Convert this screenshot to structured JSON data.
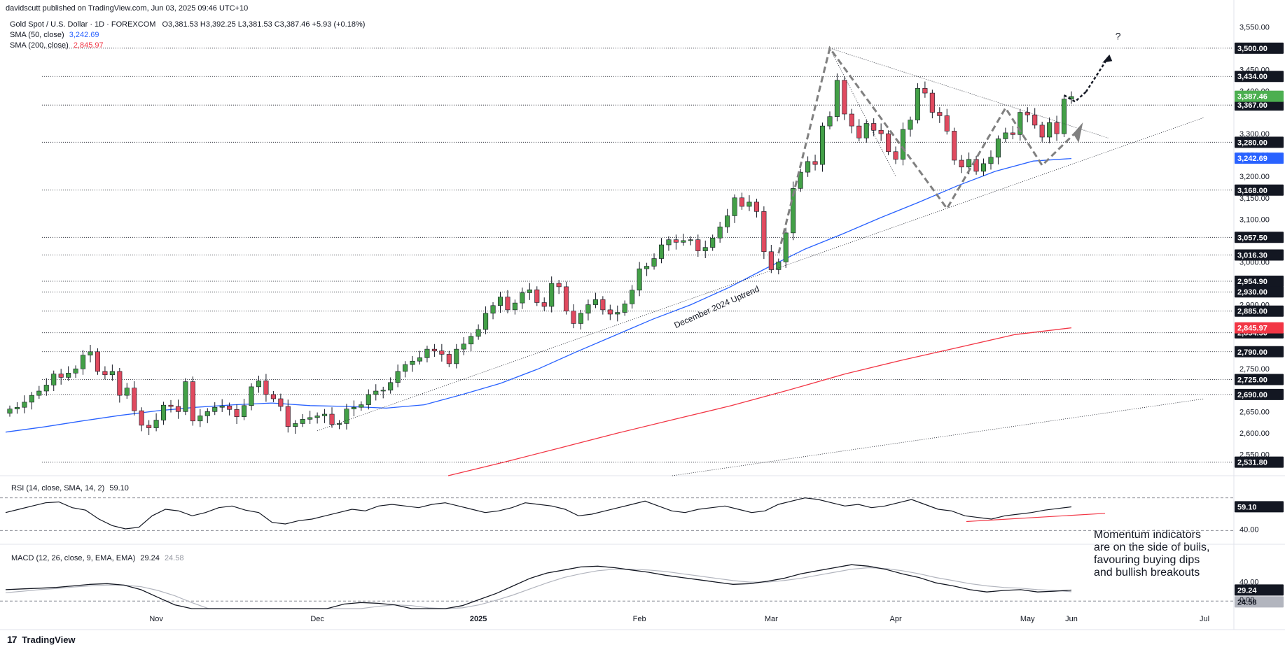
{
  "header": {
    "publisher": "davidscutt published on TradingView.com, Jun 03, 2025 09:46 UTC+10"
  },
  "legend": {
    "symbol": "Gold Spot / U.S. Dollar · 1D · FOREXCOM",
    "ohlc": "O3,381.53  H3,392.25  L3,381.53  C3,387.46  +5.93 (+0.18%)",
    "sma50_label": "SMA (50, close)",
    "sma50_value": "3,242.69",
    "sma200_label": "SMA (200, close)",
    "sma200_value": "2,845.97"
  },
  "colors": {
    "up": "#26a69a",
    "up_fill": "#43a047",
    "down": "#e04a5f",
    "wick": "#131722",
    "sma50": "#2962ff",
    "sma200": "#f23645",
    "current": "#4caf50",
    "sma50_badge": "#2962ff",
    "sma200_badge": "#f23645",
    "grid": "#f0f3fa"
  },
  "chart_data": [
    {
      "type": "candlestick",
      "title": "Gold Spot / U.S. Dollar · 1D · FOREXCOM",
      "x_axis_labels": [
        "Nov",
        "Dec",
        "2025",
        "Feb",
        "Mar",
        "Apr",
        "May",
        "Jun",
        "Jul"
      ],
      "ylim": [
        2500,
        3580
      ],
      "y_axis_ticks": [
        "3,550.00",
        "3,450.00",
        "3,400.00",
        "3,300.00",
        "3,250.00",
        "3,200.00",
        "3,150.00",
        "3,100.00",
        "3,000.00",
        "2,900.00",
        "2,750.00",
        "2,650.00",
        "2,600.00",
        "2,550.00"
      ],
      "horizontal_levels": [
        {
          "value": 3500.0,
          "label": "3,500.00"
        },
        {
          "value": 3434.0,
          "label": "3,434.00"
        },
        {
          "value": 3367.0,
          "label": "3,367.00"
        },
        {
          "value": 3280.0,
          "label": "3,280.00"
        },
        {
          "value": 3168.0,
          "label": "3,168.00"
        },
        {
          "value": 3057.5,
          "label": "3,057.50"
        },
        {
          "value": 3016.3,
          "label": "3,016.30"
        },
        {
          "value": 2954.9,
          "label": "2,954.90"
        },
        {
          "value": 2930.0,
          "label": "2,930.00"
        },
        {
          "value": 2885.0,
          "label": "2,885.00"
        },
        {
          "value": 2834.3,
          "label": "2,834.30"
        },
        {
          "value": 2790.0,
          "label": "2,790.00"
        },
        {
          "value": 2725.0,
          "label": "2,725.00"
        },
        {
          "value": 2690.0,
          "label": "2,690.00"
        },
        {
          "value": 2531.8,
          "label": "2,531.80"
        }
      ],
      "current_price": {
        "value": 3387.46,
        "label": "3,387.46"
      },
      "sma50_last": {
        "value": 3242.69,
        "label": "3,242.69"
      },
      "sma200_last": {
        "value": 2845.97,
        "label": "2,845.97"
      },
      "annotations": [
        "December 2024 Uptrend",
        "?"
      ],
      "closes": [
        2656,
        2660,
        2672,
        2688,
        2698,
        2712,
        2738,
        2730,
        2740,
        2750,
        2782,
        2790,
        2744,
        2736,
        2744,
        2688,
        2705,
        2652,
        2618,
        2612,
        2630,
        2665,
        2662,
        2650,
        2720,
        2628,
        2640,
        2650,
        2660,
        2663,
        2655,
        2638,
        2664,
        2708,
        2722,
        2690,
        2680,
        2662,
        2615,
        2622,
        2632,
        2636,
        2640,
        2644,
        2620,
        2622,
        2656,
        2660,
        2666,
        2690,
        2698,
        2700,
        2718,
        2744,
        2760,
        2768,
        2776,
        2796,
        2792,
        2784,
        2762,
        2796,
        2808,
        2826,
        2842,
        2880,
        2898,
        2918,
        2888,
        2904,
        2928,
        2935,
        2905,
        2896,
        2950,
        2942,
        2885,
        2856,
        2880,
        2900,
        2912,
        2888,
        2878,
        2882,
        2902,
        2934,
        2984,
        2990,
        3008,
        3040,
        3052,
        3046,
        3050,
        3052,
        3026,
        3034,
        3056,
        3082,
        3108,
        3150,
        3130,
        3140,
        3118,
        3024,
        2982,
        3000,
        3068,
        3172,
        3210,
        3235,
        3228,
        3318,
        3340,
        3425,
        3346,
        3318,
        3290,
        3324,
        3308,
        3300,
        3258,
        3240,
        3310,
        3332,
        3406,
        3395,
        3350,
        3342,
        3306,
        3238,
        3222,
        3240,
        3212,
        3230,
        3245,
        3288,
        3302,
        3298,
        3350,
        3344,
        3320,
        3292,
        3326,
        3300,
        3381,
        3387
      ],
      "sma50": [
        2602,
        2614,
        2628,
        2641,
        2652,
        2660,
        2666,
        2670,
        2664,
        2662,
        2658,
        2666,
        2690,
        2716,
        2750,
        2790,
        2828,
        2866,
        2900,
        2940,
        2986,
        3030,
        3066,
        3104,
        3140,
        3178,
        3212,
        3236,
        3242
      ],
      "sma200": [
        2500,
        2532,
        2566,
        2600,
        2632,
        2664,
        2700,
        2738,
        2770,
        2800,
        2830,
        2846
      ],
      "series": [
        {
          "name": "SMA (50, close)"
        },
        {
          "name": "SMA (200, close)"
        }
      ]
    },
    {
      "type": "line",
      "title": "RSI (14, close, SMA, 14, 2)",
      "value": 59.1,
      "value_label": "59.10",
      "y_axis_ticks": [
        "40.00"
      ],
      "rsi": [
        52,
        56,
        60,
        64,
        65,
        58,
        55,
        44,
        36,
        32,
        34,
        48,
        56,
        54,
        48,
        52,
        58,
        60,
        55,
        52,
        40,
        38,
        42,
        44,
        48,
        52,
        56,
        54,
        60,
        62,
        60,
        58,
        62,
        64,
        60,
        56,
        52,
        54,
        58,
        64,
        62,
        60,
        56,
        48,
        50,
        54,
        58,
        62,
        66,
        60,
        54,
        52,
        56,
        58,
        60,
        56,
        52,
        54,
        62,
        66,
        70,
        68,
        64,
        60,
        62,
        58,
        60,
        64,
        68,
        62,
        56,
        54,
        48,
        46,
        44,
        48,
        50,
        52,
        55,
        57,
        59
      ]
    },
    {
      "type": "line",
      "title": "MACD (12, 26, close, 9, EMA, EMA)",
      "macd_value": 29.24,
      "signal_value": 24.58,
      "macd_label": "29.24",
      "signal_label": "24.58",
      "y_axis_ticks": [
        "40.00",
        "0.00"
      ],
      "macd": [
        30,
        32,
        34,
        36,
        40,
        44,
        46,
        42,
        30,
        10,
        -10,
        -30,
        -60,
        -90,
        -110,
        -120,
        -110,
        -80,
        -50,
        -20,
        -8,
        -4,
        -6,
        -10,
        -20,
        -30,
        -24,
        -12,
        4,
        20,
        40,
        60,
        74,
        82,
        90,
        92,
        88,
        82,
        76,
        68,
        62,
        56,
        50,
        44,
        46,
        52,
        60,
        72,
        80,
        88,
        96,
        92,
        84,
        72,
        62,
        48,
        40,
        30,
        24,
        28,
        30,
        24,
        26,
        29
      ],
      "signal": [
        22,
        26,
        30,
        33,
        37,
        40,
        42,
        42,
        38,
        28,
        14,
        -4,
        -24,
        -46,
        -68,
        -88,
        -100,
        -96,
        -80,
        -60,
        -38,
        -22,
        -14,
        -10,
        -12,
        -18,
        -20,
        -18,
        -10,
        2,
        16,
        32,
        48,
        62,
        72,
        80,
        84,
        84,
        82,
        78,
        72,
        66,
        60,
        54,
        50,
        50,
        54,
        60,
        68,
        76,
        84,
        88,
        86,
        80,
        72,
        62,
        54,
        46,
        40,
        36,
        34,
        30,
        28,
        24.58
      ]
    }
  ],
  "annotations_text": {
    "uptrend": "December 2024 Uptrend",
    "question": "?",
    "momentum": [
      "Momentum indicators",
      "are on the side of bulls,",
      "favouring buying dips",
      "and bullish breakouts"
    ]
  },
  "rsi": {
    "label": "RSI (14, close, SMA, 14, 2)",
    "value": "59.10"
  },
  "macd": {
    "label": "MACD (12, 26, close, 9, EMA, EMA)",
    "macd_value": "29.24",
    "signal_value": "24.58"
  },
  "footer": {
    "brand": "TradingView",
    "logo": "17"
  }
}
